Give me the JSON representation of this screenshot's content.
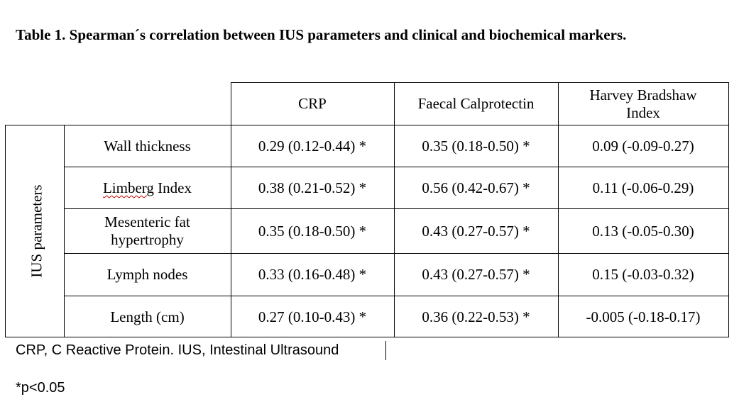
{
  "table": {
    "title": "Table 1. Spearman´s correlation between IUS parameters and clinical and biochemical markers.",
    "row_group_label": "IUS parameters",
    "columns": [
      "CRP",
      "Faecal Calprotectin",
      "Harvey Bradshaw Index"
    ],
    "rows": [
      {
        "label": "Wall thickness",
        "values": [
          "0.29 (0.12-0.44) *",
          "0.35 (0.18-0.50) *",
          "0.09 (-0.09-0.27)"
        ]
      },
      {
        "label_parts": [
          "Limberg",
          " Index"
        ],
        "values": [
          "0.38 (0.21-0.52) *",
          "0.56 (0.42-0.67) *",
          "0.11 (-0.06-0.29)"
        ]
      },
      {
        "label": "Mesenteric fat hypertrophy",
        "values": [
          "0.35 (0.18-0.50) *",
          "0.43 (0.27-0.57) *",
          "0.13 (-0.05-0.30)"
        ]
      },
      {
        "label": "Lymph nodes",
        "values": [
          "0.33 (0.16-0.48) *",
          "0.43 (0.27-0.57) *",
          "0.15 (-0.03-0.32)"
        ]
      },
      {
        "label": "Length (cm)",
        "values": [
          "0.27 (0.10-0.43) *",
          "0.36 (0.22-0.53) *",
          "-0.005 (-0.18-0.17)"
        ]
      }
    ]
  },
  "footnotes": {
    "abbreviations": "CRP, C Reactive Protein. IUS, Intestinal Ultrasound",
    "significance": "*p<0.05"
  }
}
